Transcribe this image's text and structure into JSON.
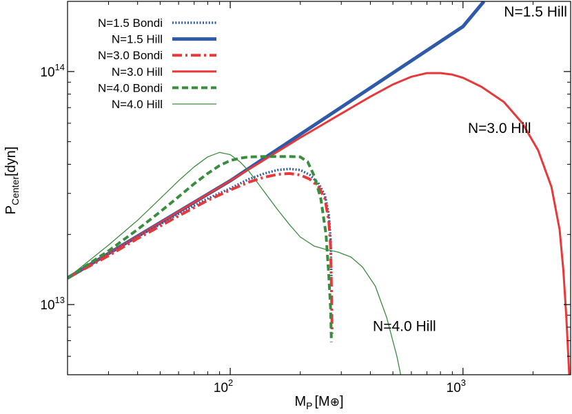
{
  "chart_data": {
    "type": "line",
    "xlabel": {
      "main": "M",
      "sub": "P",
      "unit": "[M",
      "unit_symbol": "⊕",
      "unit_close": "]"
    },
    "ylabel": {
      "main": "P",
      "sub": "Center",
      "unit": "[dyn]"
    },
    "x_scale": "log",
    "y_scale": "log",
    "xlim": [
      20,
      2900
    ],
    "ylim": [
      5000000000000.0,
      200000000000000.0
    ],
    "x_ticks": [
      {
        "value": 100,
        "base": "10",
        "exp": "2"
      },
      {
        "value": 1000,
        "base": "10",
        "exp": "3"
      }
    ],
    "y_ticks": [
      {
        "value": 10000000000000.0,
        "base": "10",
        "exp": "13"
      },
      {
        "value": 100000000000000.0,
        "base": "10",
        "exp": "14"
      }
    ],
    "grid": false,
    "legend_position": "top-left",
    "series": [
      {
        "name": "N=1.5 Bondi",
        "color": "#2f5aa8",
        "dash": "dotted",
        "width": 3.5,
        "x": [
          20,
          30,
          40,
          60,
          80,
          100,
          120,
          140,
          160,
          180,
          200,
          220,
          240,
          255,
          265,
          270,
          272
        ],
        "y": [
          13000000000000.0,
          16500000000000.0,
          19500000000000.0,
          24500000000000.0,
          28500000000000.0,
          31500000000000.0,
          34500000000000.0,
          36500000000000.0,
          37800000000000.0,
          38200000000000.0,
          37800000000000.0,
          36000000000000.0,
          33000000000000.0,
          29500000000000.0,
          24500000000000.0,
          19000000000000.0,
          13000000000000.0
        ]
      },
      {
        "name": "N=1.5 Hill",
        "color": "#2f5aa8",
        "dash": "solid",
        "width": 5,
        "x": [
          20,
          100,
          1000,
          1230
        ],
        "y": [
          13000000000000.0,
          34000000000000.0,
          156000000000000.0,
          200000000000000.0
        ]
      },
      {
        "name": "N=3.0 Bondi",
        "color": "#e8383a",
        "dash": "dashdot",
        "width": 4,
        "x": [
          20,
          30,
          40,
          60,
          80,
          100,
          120,
          140,
          160,
          180,
          200,
          220,
          240,
          255,
          265,
          270,
          272,
          274
        ],
        "y": [
          13000000000000.0,
          16200000000000.0,
          19200000000000.0,
          24000000000000.0,
          28000000000000.0,
          31000000000000.0,
          33500000000000.0,
          35200000000000.0,
          36200000000000.0,
          36500000000000.0,
          36000000000000.0,
          34500000000000.0,
          32000000000000.0,
          28500000000000.0,
          23000000000000.0,
          17500000000000.0,
          12000000000000.0,
          7500000000000.0
        ]
      },
      {
        "name": "N=3.0 Hill",
        "color": "#e8383a",
        "dash": "solid",
        "width": 3,
        "x": [
          20,
          100,
          200,
          300,
          400,
          500,
          600,
          700,
          800,
          900,
          1000,
          1200,
          1500,
          1800,
          2100,
          2400,
          2600,
          2700,
          2780,
          2830,
          2860
        ],
        "y": [
          13000000000000.0,
          34000000000000.0,
          52000000000000.0,
          66000000000000.0,
          78000000000000.0,
          88000000000000.0,
          95000000000000.0,
          98500000000000.0,
          98500000000000.0,
          97000000000000.0,
          94000000000000.0,
          86000000000000.0,
          74000000000000.0,
          60000000000000.0,
          46000000000000.0,
          32000000000000.0,
          21000000000000.0,
          14000000000000.0,
          8800000000000.0,
          6200000000000.0,
          5000000000000.0
        ]
      },
      {
        "name": "N=4.0 Bondi",
        "color": "#3a8c3e",
        "dash": "dashed",
        "width": 4,
        "x": [
          20,
          30,
          40,
          50,
          60,
          70,
          80,
          90,
          100,
          110,
          120,
          140,
          160,
          180,
          200,
          215,
          230,
          245,
          258,
          265,
          270,
          272
        ],
        "y": [
          13000000000000.0,
          17000000000000.0,
          21000000000000.0,
          25000000000000.0,
          29000000000000.0,
          33000000000000.0,
          36500000000000.0,
          39500000000000.0,
          41500000000000.0,
          42500000000000.0,
          43000000000000.0,
          43200000000000.0,
          43200000000000.0,
          43200000000000.0,
          43000000000000.0,
          41000000000000.0,
          35500000000000.0,
          28500000000000.0,
          20000000000000.0,
          13500000000000.0,
          9500000000000.0,
          6900000000000.0
        ]
      },
      {
        "name": "N=4.0 Hill",
        "color": "#3a8c3e",
        "dash": "solid",
        "width": 1.3,
        "x": [
          20,
          30,
          40,
          50,
          60,
          70,
          80,
          90,
          100,
          110,
          120,
          140,
          160,
          180,
          200,
          230,
          260,
          290,
          330,
          370,
          420,
          470,
          520,
          540
        ],
        "y": [
          13000000000000.0,
          18000000000000.0,
          23000000000000.0,
          28500000000000.0,
          34000000000000.0,
          39000000000000.0,
          43000000000000.0,
          45000000000000.0,
          44000000000000.0,
          41000000000000.0,
          37500000000000.0,
          30500000000000.0,
          25500000000000.0,
          22000000000000.0,
          19500000000000.0,
          17800000000000.0,
          17200000000000.0,
          16800000000000.0,
          16000000000000.0,
          14500000000000.0,
          12000000000000.0,
          8800000000000.0,
          6000000000000.0,
          5000000000000.0
        ]
      }
    ],
    "annotations": [
      {
        "text": "N=1.5 Hill",
        "x": 1500,
        "y": 172000000000000.0
      },
      {
        "text": "N=3.0 Hill",
        "x": 1050,
        "y": 54500000000000.0
      },
      {
        "text": "N=4.0 Hill",
        "x": 410,
        "y": 7700000000000.0
      }
    ]
  }
}
